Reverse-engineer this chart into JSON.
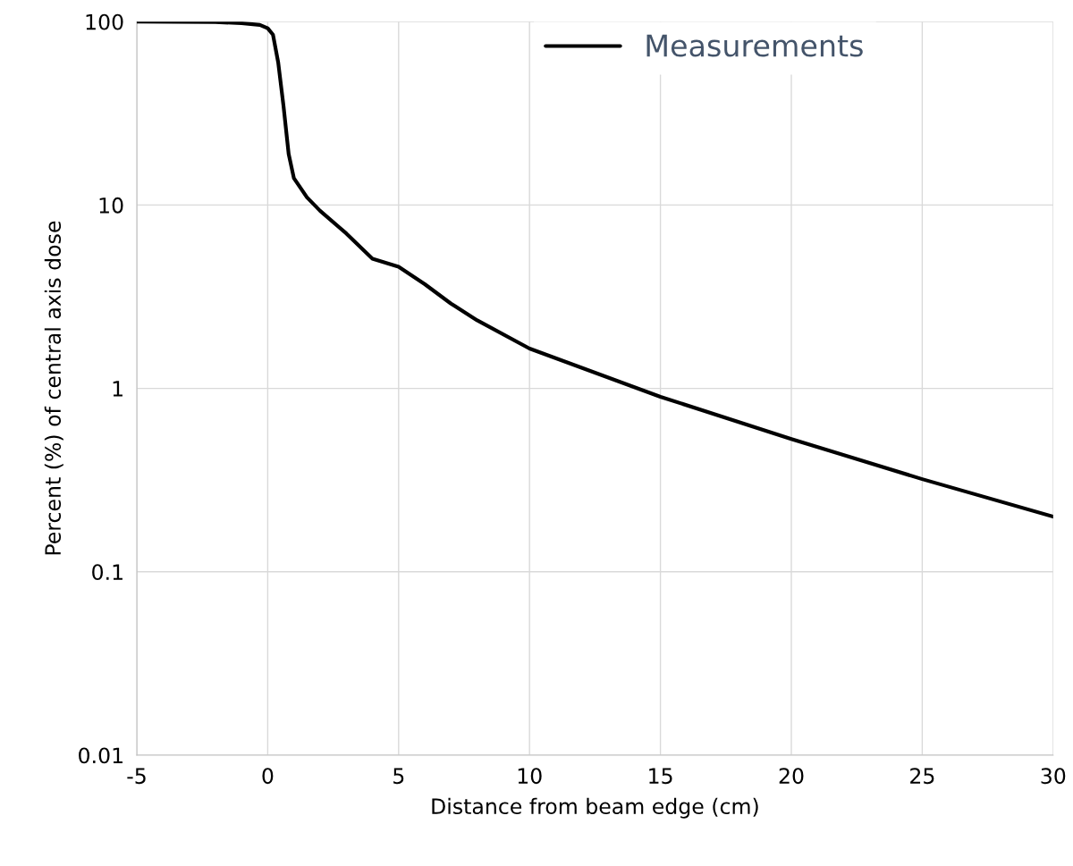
{
  "chart_data": {
    "type": "line",
    "xlabel": "Distance from beam edge (cm)",
    "ylabel": "Percent (%) of central axis dose",
    "log": "y",
    "grid": true,
    "legend": "top",
    "line_style": "solid",
    "marker": "none",
    "xlim": [
      -5,
      30
    ],
    "xticks": [
      {
        "value": -5,
        "label": "-5"
      },
      0,
      5,
      10,
      15,
      20,
      25,
      30
    ],
    "ylim": [
      0.01,
      100
    ],
    "yticks": [
      0.01,
      0.1,
      1,
      10,
      100
    ],
    "series": [
      {
        "name": "Measurements",
        "color": "#000000",
        "x": [
          -5,
          -2,
          -1,
          -0.3,
          0,
          0.2,
          0.4,
          0.6,
          0.8,
          1.0,
          1.5,
          2,
          3,
          4,
          5,
          6,
          7,
          8,
          10,
          15,
          20,
          25,
          30
        ],
        "values": [
          100,
          99.5,
          98,
          96,
          92,
          85,
          60,
          35,
          19,
          14,
          11,
          9.3,
          7.0,
          5.1,
          4.6,
          3.7,
          2.9,
          2.35,
          1.65,
          0.9,
          0.53,
          0.32,
          0.2
        ]
      }
    ]
  }
}
